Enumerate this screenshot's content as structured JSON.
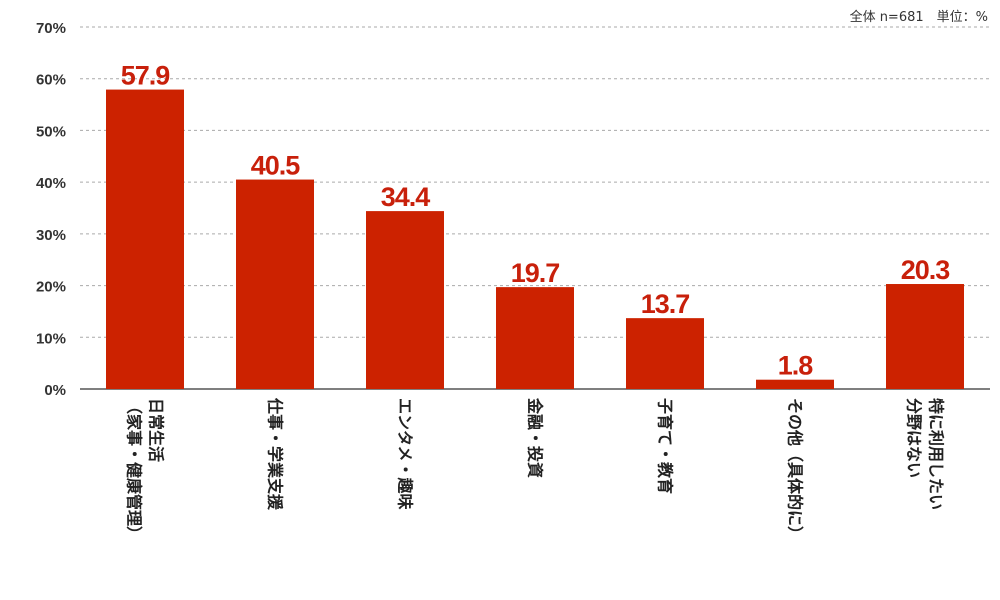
{
  "note": "全体 n=681　単位：%",
  "colors": {
    "bar": "#cc2200",
    "label": "#c8200b",
    "grid": "#aaaaaa",
    "axis": "#555555"
  },
  "chart_data": {
    "type": "bar",
    "categories": [
      [
        "日常生活",
        "（家事・健康管理）"
      ],
      [
        "仕事・学業支援"
      ],
      [
        "エンタメ・趣味"
      ],
      [
        "金融・投資"
      ],
      [
        "子育て・教育"
      ],
      [
        "その他（具体的に）"
      ],
      [
        "特に利用したい",
        "分野はない"
      ]
    ],
    "values": [
      57.9,
      40.5,
      34.4,
      19.7,
      13.7,
      1.8,
      20.3
    ],
    "value_labels": [
      "57.9",
      "40.5",
      "34.4",
      "19.7",
      "13.7",
      "1.8",
      "20.3"
    ],
    "ylim": [
      0,
      70
    ],
    "yticks": [
      "0%",
      "10%",
      "20%",
      "30%",
      "40%",
      "50%",
      "60%",
      "70%"
    ],
    "grid": true,
    "legend": "none"
  }
}
